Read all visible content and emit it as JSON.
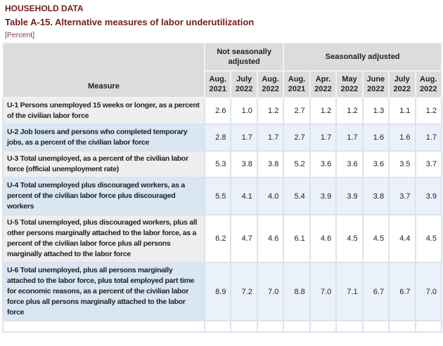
{
  "page": {
    "section_title": "HOUSEHOLD DATA",
    "table_title": "Table A-15. Alternative measures of labor underutilization",
    "unit_label": "[Percent]"
  },
  "colors": {
    "title_maroon": "#731b1f",
    "header_bg": "#dcdcdc",
    "alt_row_measure_bg": "#d9e6f4",
    "alt_row_data_bg": "#eaf1fa",
    "row_measure_bg": "#eeeeee",
    "row_data_bg": "#ffffff"
  },
  "table": {
    "measure_header": "Measure",
    "groups": [
      {
        "label": "Not seasonally adjusted",
        "colspan": 3
      },
      {
        "label": "Seasonally adjusted",
        "colspan": 6
      }
    ],
    "columns": [
      "Aug.\n2021",
      "July\n2022",
      "Aug.\n2022",
      "Aug.\n2021",
      "Apr.\n2022",
      "May\n2022",
      "June\n2022",
      "July\n2022",
      "Aug.\n2022"
    ],
    "rows": [
      {
        "measure": "U-1 Persons unemployed 15 weeks or longer, as a percent of the civilian labor force",
        "values": [
          "2.6",
          "1.0",
          "1.2",
          "2.7",
          "1.2",
          "1.2",
          "1.3",
          "1.1",
          "1.2"
        ]
      },
      {
        "measure": "U-2 Job losers and persons who completed temporary jobs, as a percent of the civilian labor force",
        "values": [
          "2.8",
          "1.7",
          "1.7",
          "2.7",
          "1.7",
          "1.7",
          "1.6",
          "1.6",
          "1.7"
        ]
      },
      {
        "measure": "U-3 Total unemployed, as a percent of the civilian labor force (official unemployment rate)",
        "values": [
          "5.3",
          "3.8",
          "3.8",
          "5.2",
          "3.6",
          "3.6",
          "3.6",
          "3.5",
          "3.7"
        ]
      },
      {
        "measure": "U-4 Total unemployed plus discouraged workers, as a percent of the civilian labor force plus discouraged workers",
        "values": [
          "5.5",
          "4.1",
          "4.0",
          "5.4",
          "3.9",
          "3.9",
          "3.8",
          "3.7",
          "3.9"
        ]
      },
      {
        "measure": "U-5 Total unemployed, plus discouraged workers, plus all other persons marginally attached to the labor force, as a percent of the civilian labor force plus all persons marginally attached to the labor force",
        "values": [
          "6.2",
          "4.7",
          "4.6",
          "6.1",
          "4.6",
          "4.5",
          "4.5",
          "4.4",
          "4.5"
        ]
      },
      {
        "measure": "U-6 Total unemployed, plus all persons marginally attached to the labor force, plus total employed part time for economic reasons, as a percent of the civilian labor force plus all persons marginally attached to the labor force",
        "values": [
          "8.9",
          "7.2",
          "7.0",
          "8.8",
          "7.0",
          "7.1",
          "6.7",
          "6.7",
          "7.0"
        ]
      }
    ]
  }
}
